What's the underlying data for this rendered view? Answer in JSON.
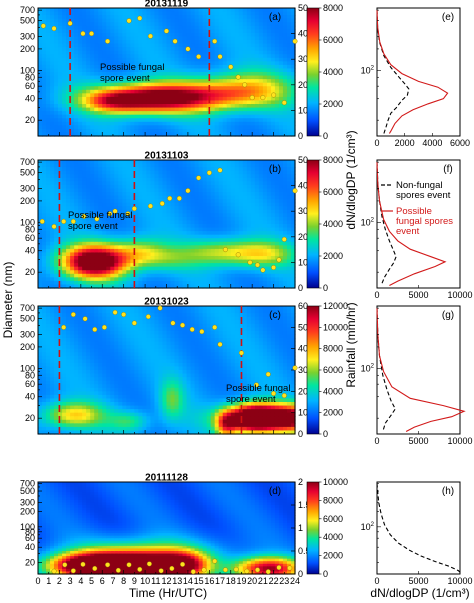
{
  "labels": {
    "diameter": "Diameter (nm)",
    "dndlogdp": "dN/dlogDP (1/cm³)",
    "rainfall": "Rainfall (mm/hr)",
    "time": "Time (Hr/UTC)",
    "bottom_right": "dN/dlogDP (1/cm³)"
  },
  "chart_data": [
    {
      "type": "heatmap",
      "title": "20131119",
      "panel_label": "(a)",
      "x": {
        "min": 0,
        "max": 24
      },
      "y_log_ticks": [
        20,
        40,
        60,
        80,
        100,
        200,
        300,
        500,
        700
      ],
      "y_log_range": [
        12,
        750
      ],
      "colorbar": {
        "min": 0,
        "max": 8000,
        "ticks": [
          0,
          2000,
          4000,
          6000,
          8000
        ]
      },
      "rain_axis": {
        "min": 0,
        "max": 50,
        "ticks": [
          0,
          10,
          20,
          30,
          40,
          50
        ]
      },
      "event_lines": [
        3,
        16
      ],
      "annotation": {
        "lines": [
          "Possible fungal",
          "spore event"
        ],
        "color": "black"
      },
      "blobs": [
        {
          "x": 10,
          "d": 40,
          "sx": 3.6,
          "sy": 0.14,
          "amp": 0.85
        },
        {
          "x": 7,
          "d": 36,
          "sx": 1.8,
          "sy": 0.1,
          "amp": 0.25
        },
        {
          "x": 16,
          "d": 45,
          "sx": 3.5,
          "sy": 0.15,
          "amp": 0.4
        },
        {
          "x": 20,
          "d": 55,
          "sx": 3,
          "sy": 0.18,
          "amp": 0.3
        }
      ],
      "background": 0.22,
      "rain_points": [
        [
          0.5,
          43
        ],
        [
          1.5,
          42
        ],
        [
          3,
          44
        ],
        [
          4.2,
          40
        ],
        [
          5,
          40
        ],
        [
          6.5,
          37
        ],
        [
          8.5,
          45
        ],
        [
          9.5,
          46
        ],
        [
          10.5,
          39
        ],
        [
          12,
          41
        ],
        [
          12.8,
          37
        ],
        [
          14,
          34
        ],
        [
          15,
          31
        ],
        [
          16.5,
          37
        ],
        [
          17,
          31
        ],
        [
          18,
          27
        ],
        [
          18.7,
          23
        ],
        [
          19.3,
          20
        ],
        [
          20,
          15
        ],
        [
          21,
          15
        ],
        [
          22,
          16
        ],
        [
          23,
          13
        ],
        [
          24,
          37
        ]
      ]
    },
    {
      "type": "heatmap",
      "title": "20131103",
      "panel_label": "(b)",
      "x": {
        "min": 0,
        "max": 24
      },
      "y_log_ticks": [
        20,
        40,
        60,
        80,
        100,
        200,
        300,
        500,
        700
      ],
      "y_log_range": [
        12,
        750
      ],
      "colorbar": {
        "min": 0,
        "max": 8000,
        "ticks": [
          0,
          2000,
          4000,
          6000,
          8000
        ]
      },
      "rain_axis": {
        "min": 0,
        "max": 50,
        "ticks": [
          0,
          10,
          20,
          30,
          40,
          50
        ]
      },
      "event_lines": [
        2,
        9
      ],
      "annotation": {
        "lines": [
          "Possible fungal",
          "spore event"
        ],
        "color": "black"
      },
      "blobs": [
        {
          "x": 5.3,
          "d": 28,
          "sx": 2.1,
          "sy": 0.16,
          "amp": 1.0
        },
        {
          "x": 9.5,
          "d": 38,
          "sx": 1.8,
          "sy": 0.14,
          "amp": 0.3
        },
        {
          "x": 17,
          "d": 38,
          "sx": 2.5,
          "sy": 0.13,
          "amp": 0.3
        },
        {
          "x": 21,
          "d": 36,
          "sx": 2.2,
          "sy": 0.13,
          "amp": 0.3
        },
        {
          "x": 12,
          "d": 30,
          "sx": 2.0,
          "sy": 0.12,
          "amp": 0.15
        }
      ],
      "background": 0.22,
      "rain_points": [
        [
          0.4,
          26
        ],
        [
          1.5,
          24
        ],
        [
          2.4,
          26
        ],
        [
          3.3,
          26
        ],
        [
          4.3,
          28
        ],
        [
          5.5,
          27
        ],
        [
          6.7,
          29
        ],
        [
          7.2,
          30
        ],
        [
          8.4,
          29
        ],
        [
          9,
          31
        ],
        [
          10.5,
          32
        ],
        [
          11.6,
          33
        ],
        [
          12.3,
          35
        ],
        [
          13.2,
          35
        ],
        [
          14,
          38
        ],
        [
          15,
          43
        ],
        [
          16,
          45
        ],
        [
          17,
          46
        ],
        [
          17.5,
          15
        ],
        [
          18.7,
          13
        ],
        [
          19.8,
          10
        ],
        [
          20.5,
          9
        ],
        [
          21,
          7
        ],
        [
          22,
          8
        ],
        [
          22.5,
          11
        ],
        [
          23,
          19
        ],
        [
          24,
          38
        ]
      ]
    },
    {
      "type": "heatmap",
      "title": "20131023",
      "panel_label": "(c)",
      "x": {
        "min": 0,
        "max": 24
      },
      "y_log_ticks": [
        20,
        40,
        60,
        80,
        100,
        200,
        300,
        500,
        700
      ],
      "y_log_range": [
        12,
        750
      ],
      "colorbar": {
        "min": 0,
        "max": 12000,
        "ticks": [
          0,
          2000,
          4000,
          6000,
          8000,
          10000,
          12000
        ]
      },
      "rain_axis": {
        "min": 0,
        "max": 60,
        "ticks": [
          0,
          10,
          20,
          30,
          40,
          50,
          60
        ]
      },
      "event_lines": [
        2,
        19
      ],
      "annotation": {
        "lines": [
          "Possible fungal",
          "spore event"
        ],
        "color": "black"
      },
      "blobs": [
        {
          "x": 3.3,
          "d": 22,
          "sx": 2.0,
          "sy": 0.13,
          "amp": 0.4
        },
        {
          "x": 8.5,
          "d": 18,
          "sx": 1.3,
          "sy": 0.1,
          "amp": 0.2
        },
        {
          "x": 12.5,
          "d": 36,
          "sx": 0.8,
          "sy": 0.2,
          "amp": 0.22
        },
        {
          "x": 17.6,
          "d": 16,
          "sx": 0.7,
          "sy": 0.13,
          "amp": 0.45
        },
        {
          "x": 22.5,
          "d": 20,
          "sx": 3.2,
          "sy": 0.13,
          "amp": 1.0
        },
        {
          "x": 20,
          "d": 20,
          "sx": 1.4,
          "sy": 0.13,
          "amp": 0.65
        }
      ],
      "background": 0.22,
      "rain_points": [
        [
          2.4,
          50
        ],
        [
          3.3,
          56
        ],
        [
          4.4,
          54
        ],
        [
          5.3,
          49
        ],
        [
          6.2,
          50
        ],
        [
          7.2,
          57
        ],
        [
          8,
          56
        ],
        [
          9,
          52
        ],
        [
          10.3,
          55
        ],
        [
          11.4,
          59
        ],
        [
          12.6,
          52
        ],
        [
          13.5,
          51
        ],
        [
          14.4,
          49
        ],
        [
          15.3,
          48
        ],
        [
          16.5,
          50
        ],
        [
          17,
          42
        ],
        [
          19,
          38
        ],
        [
          20.4,
          23
        ],
        [
          21.5,
          28
        ],
        [
          22,
          19
        ],
        [
          23,
          18
        ],
        [
          24,
          31
        ]
      ]
    },
    {
      "type": "heatmap",
      "title": "20111128",
      "panel_label": "(d)",
      "x": {
        "min": 0,
        "max": 24,
        "ticks": [
          0,
          1,
          2,
          3,
          4,
          5,
          6,
          7,
          8,
          9,
          10,
          11,
          12,
          13,
          14,
          15,
          16,
          17,
          18,
          19,
          20,
          21,
          22,
          23,
          24
        ]
      },
      "y_log_ticks": [
        20,
        40,
        60,
        80,
        100,
        200,
        300,
        500,
        700
      ],
      "y_log_range": [
        12,
        750
      ],
      "colorbar": {
        "min": 0,
        "max": 10000,
        "ticks": [
          0,
          2000,
          4000,
          6000,
          8000,
          10000
        ]
      },
      "rain_axis": {
        "min": 0,
        "max": 2,
        "ticks": [
          0,
          0.5,
          1,
          1.5,
          2
        ]
      },
      "event_lines": [],
      "annotation": null,
      "blobs": [
        {
          "x": 4.5,
          "d": 17,
          "sx": 2.6,
          "sy": 0.17,
          "amp": 0.95
        },
        {
          "x": 9.5,
          "d": 17,
          "sx": 3.2,
          "sy": 0.2,
          "amp": 1.0
        },
        {
          "x": 13.5,
          "d": 17,
          "sx": 1.6,
          "sy": 0.18,
          "amp": 0.55
        },
        {
          "x": 21.5,
          "d": 15,
          "sx": 2.2,
          "sy": 0.16,
          "amp": 0.85
        },
        {
          "x": 10,
          "d": 28,
          "sx": 5,
          "sy": 0.25,
          "amp": 0.3
        }
      ],
      "background": 0.14,
      "rain_points": [
        [
          1.5,
          0.06
        ],
        [
          2.5,
          0.2
        ],
        [
          3.3,
          0.07
        ],
        [
          4.2,
          0.21
        ],
        [
          5.3,
          0.12
        ],
        [
          6.5,
          0.2
        ],
        [
          7.5,
          0.08
        ],
        [
          8.5,
          0.2
        ],
        [
          9.5,
          0.1
        ],
        [
          10.4,
          0.22
        ],
        [
          11.5,
          0.07
        ],
        [
          12.5,
          0.12
        ],
        [
          13.5,
          0.21
        ],
        [
          14.5,
          0.05
        ],
        [
          15.5,
          0.09
        ],
        [
          16.5,
          0.28
        ],
        [
          17.5,
          0.09
        ],
        [
          18.5,
          0.1
        ],
        [
          19.5,
          0.06
        ],
        [
          20.5,
          0.09
        ],
        [
          21.5,
          0.05
        ],
        [
          22.5,
          0.14
        ],
        [
          23.5,
          0.13
        ]
      ]
    },
    {
      "type": "line",
      "panel_label": "(e)",
      "x": {
        "min": 0,
        "max": 6000,
        "ticks": [
          0,
          2000,
          4000,
          6000
        ]
      },
      "series": [
        {
          "color": "black",
          "dash": true,
          "points": [
            [
              0,
              700
            ],
            [
              40,
              400
            ],
            [
              180,
              250
            ],
            [
              500,
              160
            ],
            [
              1000,
              110
            ],
            [
              1600,
              80
            ],
            [
              2000,
              65
            ],
            [
              2300,
              55
            ],
            [
              2200,
              45
            ],
            [
              1800,
              38
            ],
            [
              1400,
              30
            ],
            [
              1000,
              25
            ],
            [
              800,
              20
            ],
            [
              650,
              16
            ],
            [
              500,
              13
            ]
          ]
        },
        {
          "color": "red",
          "dash": false,
          "points": [
            [
              0,
              700
            ],
            [
              50,
              400
            ],
            [
              200,
              250
            ],
            [
              500,
              170
            ],
            [
              1000,
              120
            ],
            [
              1800,
              90
            ],
            [
              3000,
              70
            ],
            [
              4400,
              58
            ],
            [
              5100,
              48
            ],
            [
              4800,
              40
            ],
            [
              3700,
              34
            ],
            [
              2600,
              28
            ],
            [
              1800,
              23
            ],
            [
              1300,
              18
            ],
            [
              1000,
              14
            ],
            [
              900,
              13
            ]
          ]
        }
      ]
    },
    {
      "type": "line",
      "panel_label": "(f)",
      "x": {
        "min": 0,
        "max": 10000,
        "ticks": [
          0,
          5000,
          10000
        ]
      },
      "legend": {
        "entries": [
          {
            "name": "Non-fungal spores event",
            "lines": [
              "Non-fungal",
              "spores event"
            ],
            "color": "black",
            "dash": true
          },
          {
            "name": "Possible fungal spores event",
            "lines": [
              "Possible",
              "fungal spores",
              "event"
            ],
            "color": "red",
            "dash": false
          }
        ]
      },
      "series": [
        {
          "color": "black",
          "dash": true,
          "points": [
            [
              0,
              700
            ],
            [
              100,
              350
            ],
            [
              300,
              200
            ],
            [
              600,
              120
            ],
            [
              1000,
              80
            ],
            [
              1500,
              55
            ],
            [
              2000,
              40
            ],
            [
              2300,
              33
            ],
            [
              2000,
              27
            ],
            [
              1500,
              22
            ],
            [
              900,
              17
            ],
            [
              500,
              13
            ]
          ]
        },
        {
          "color": "red",
          "dash": false,
          "points": [
            [
              0,
              700
            ],
            [
              100,
              350
            ],
            [
              300,
              200
            ],
            [
              800,
              110
            ],
            [
              1500,
              75
            ],
            [
              2500,
              55
            ],
            [
              4000,
              42
            ],
            [
              6500,
              33
            ],
            [
              8200,
              28
            ],
            [
              7000,
              24
            ],
            [
              4500,
              19
            ],
            [
              2500,
              15
            ],
            [
              1500,
              13
            ]
          ]
        }
      ]
    },
    {
      "type": "line",
      "panel_label": "(g)",
      "x": {
        "min": 0,
        "max": 10000,
        "ticks": [
          0,
          5000,
          10000
        ]
      },
      "series": [
        {
          "color": "black",
          "dash": true,
          "points": [
            [
              0,
              700
            ],
            [
              100,
              300
            ],
            [
              300,
              150
            ],
            [
              700,
              80
            ],
            [
              1200,
              50
            ],
            [
              1700,
              35
            ],
            [
              2200,
              27
            ],
            [
              1700,
              22
            ],
            [
              1000,
              17
            ],
            [
              700,
              13
            ]
          ]
        },
        {
          "color": "red",
          "dash": false,
          "points": [
            [
              0,
              700
            ],
            [
              100,
              300
            ],
            [
              300,
              150
            ],
            [
              800,
              90
            ],
            [
              1800,
              55
            ],
            [
              4000,
              38
            ],
            [
              8000,
              30
            ],
            [
              10500,
              25
            ],
            [
              9000,
              21
            ],
            [
              6500,
              18
            ],
            [
              4500,
              15
            ],
            [
              3500,
              13
            ]
          ]
        }
      ]
    },
    {
      "type": "line",
      "panel_label": "(h)",
      "x": {
        "min": 0,
        "max": 10000,
        "ticks": [
          0,
          5000,
          10000
        ]
      },
      "series": [
        {
          "color": "black",
          "dash": true,
          "points": [
            [
              0,
              700
            ],
            [
              200,
              300
            ],
            [
              500,
              180
            ],
            [
              900,
              110
            ],
            [
              1600,
              70
            ],
            [
              2600,
              48
            ],
            [
              3900,
              35
            ],
            [
              5300,
              27
            ],
            [
              7000,
              21
            ],
            [
              8700,
              17
            ],
            [
              9800,
              14
            ],
            [
              10000,
              13
            ]
          ]
        }
      ]
    }
  ]
}
